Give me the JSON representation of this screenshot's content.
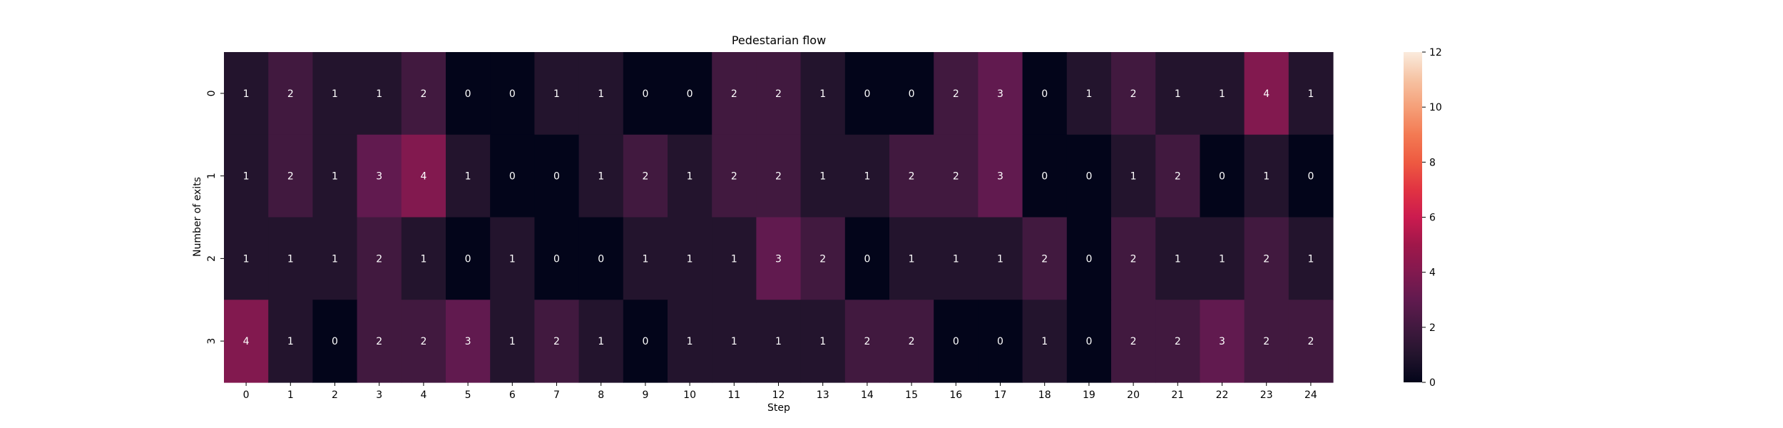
{
  "chart_data": {
    "type": "heatmap",
    "title": "Pedestarian flow",
    "xlabel": "Step",
    "ylabel": "Number of exits",
    "x_categories": [
      "0",
      "1",
      "2",
      "3",
      "4",
      "5",
      "6",
      "7",
      "8",
      "9",
      "10",
      "11",
      "12",
      "13",
      "14",
      "15",
      "16",
      "17",
      "18",
      "19",
      "20",
      "21",
      "22",
      "23",
      "24"
    ],
    "y_categories": [
      "0",
      "1",
      "2",
      "3"
    ],
    "values": [
      [
        1,
        2,
        1,
        1,
        2,
        0,
        0,
        1,
        1,
        0,
        0,
        2,
        2,
        1,
        0,
        0,
        2,
        3,
        0,
        1,
        2,
        1,
        1,
        4,
        1
      ],
      [
        1,
        2,
        1,
        3,
        4,
        1,
        0,
        0,
        1,
        2,
        1,
        2,
        2,
        1,
        1,
        2,
        2,
        3,
        0,
        0,
        1,
        2,
        0,
        1,
        0
      ],
      [
        1,
        1,
        1,
        2,
        1,
        0,
        1,
        0,
        0,
        1,
        1,
        1,
        3,
        2,
        0,
        1,
        1,
        1,
        2,
        0,
        2,
        1,
        1,
        2,
        1
      ],
      [
        4,
        1,
        0,
        2,
        2,
        3,
        1,
        2,
        1,
        0,
        1,
        1,
        1,
        1,
        2,
        2,
        0,
        0,
        1,
        0,
        2,
        2,
        3,
        2,
        2
      ]
    ],
    "colorbar": {
      "min": 0,
      "max": 12,
      "ticks": [
        0,
        2,
        4,
        6,
        8,
        10,
        12
      ],
      "colormap": "rocket"
    },
    "annotate": true,
    "grid": false
  }
}
